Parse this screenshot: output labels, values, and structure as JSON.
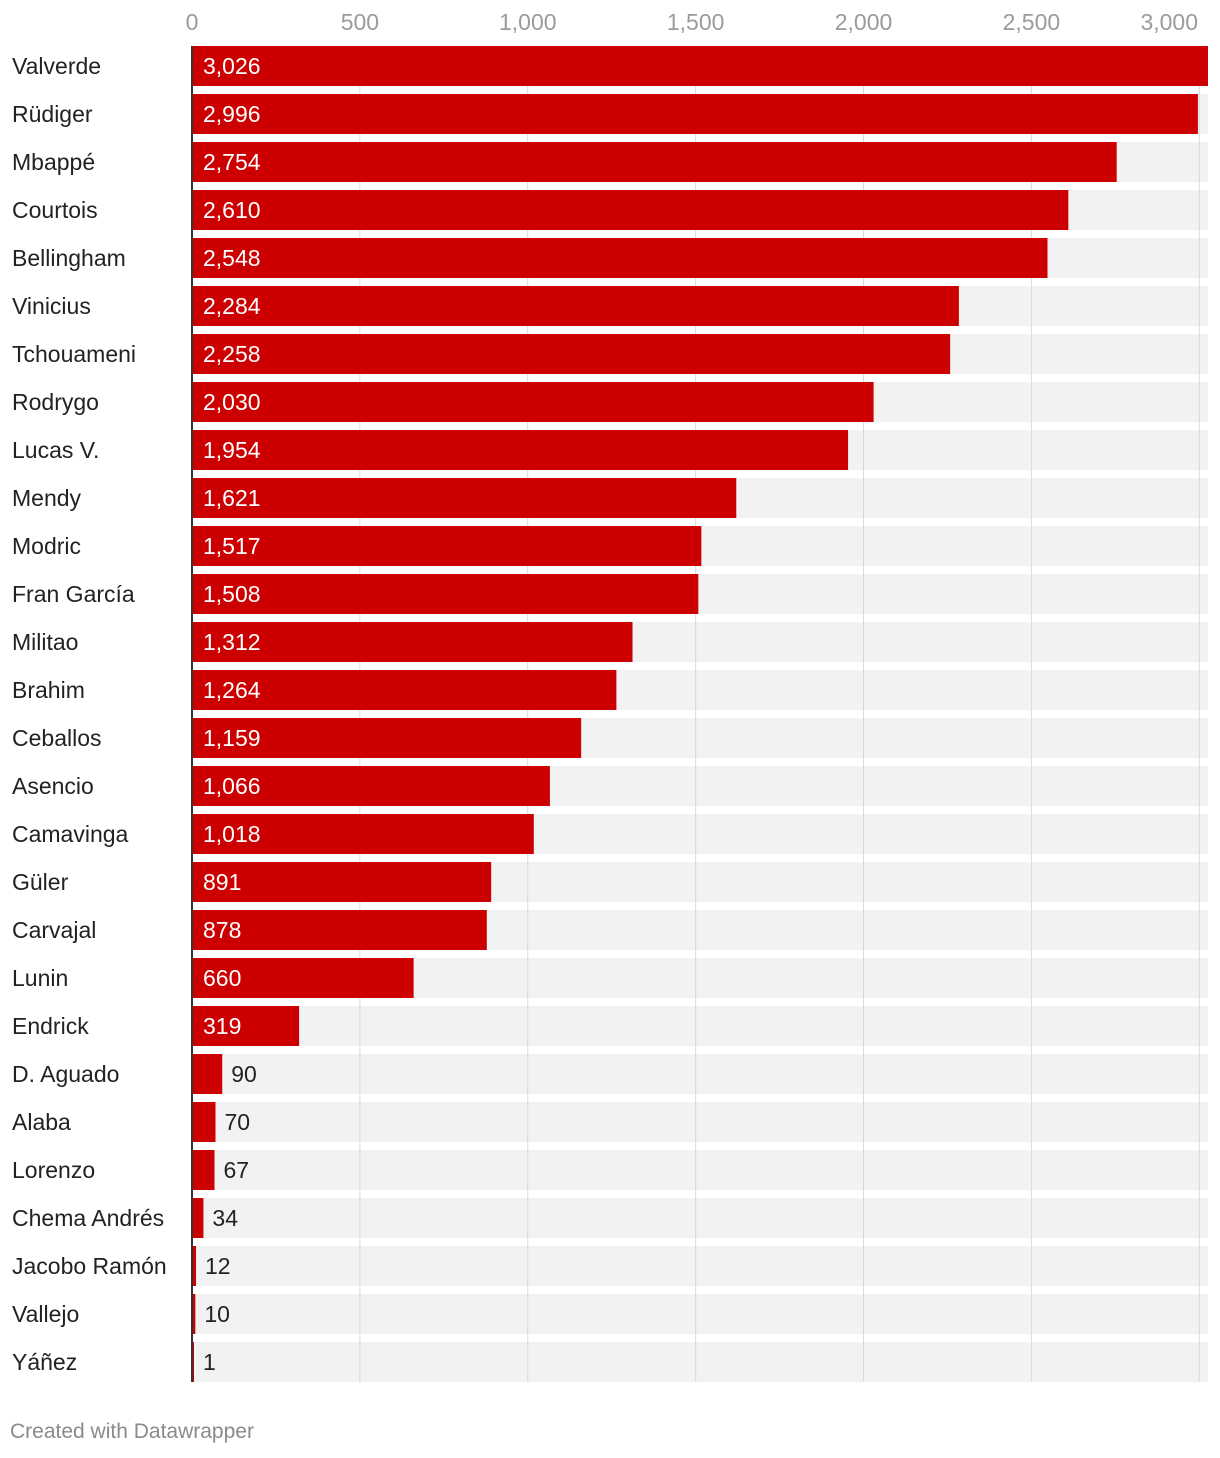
{
  "chart_data": {
    "type": "bar",
    "orientation": "horizontal",
    "title": "",
    "xlabel": "",
    "ylabel": "",
    "xlim": [
      0,
      3026
    ],
    "ticks": [
      "0",
      "500",
      "1,000",
      "1,500",
      "2,000",
      "2,500",
      "3,000"
    ],
    "tick_values": [
      0,
      500,
      1000,
      1500,
      2000,
      2500,
      3000
    ],
    "categories": [
      "Valverde",
      "Rüdiger",
      "Mbappé",
      "Courtois",
      "Bellingham",
      "Vinicius",
      "Tchouameni",
      "Rodrygo",
      "Lucas V.",
      "Mendy",
      "Modric",
      "Fran García",
      "Militao",
      "Brahim",
      "Ceballos",
      "Asencio",
      "Camavinga",
      "Güler",
      "Carvajal",
      "Lunin",
      "Endrick",
      "D. Aguado",
      "Alaba",
      "Lorenzo",
      "Chema Andrés",
      "Jacobo Ramón",
      "Vallejo",
      "Yáñez"
    ],
    "values": [
      3026,
      2996,
      2754,
      2610,
      2548,
      2284,
      2258,
      2030,
      1954,
      1621,
      1517,
      1508,
      1312,
      1264,
      1159,
      1066,
      1018,
      891,
      878,
      660,
      319,
      90,
      70,
      67,
      34,
      12,
      10,
      1
    ],
    "value_labels": [
      "3,026",
      "2,996",
      "2,754",
      "2,610",
      "2,548",
      "2,284",
      "2,258",
      "2,030",
      "1,954",
      "1,621",
      "1,517",
      "1,508",
      "1,312",
      "1,264",
      "1,159",
      "1,066",
      "1,018",
      "891",
      "878",
      "660",
      "319",
      "90",
      "70",
      "67",
      "34",
      "12",
      "10",
      "1"
    ],
    "colors": {
      "bar": "#cc0000",
      "track": "#f2f2f2",
      "grid": "#d9d9d9",
      "tick_text": "#9b9b9b",
      "label_text": "#222222",
      "axis": "#333333"
    }
  },
  "footer": {
    "credit": "Created with Datawrapper"
  }
}
